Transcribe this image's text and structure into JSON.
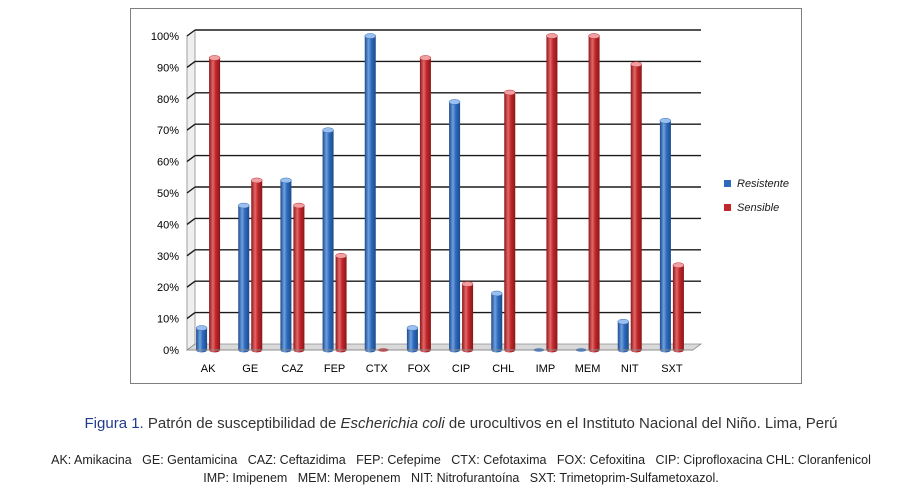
{
  "chart_data": {
    "type": "bar",
    "categories": [
      "AK",
      "GE",
      "CAZ",
      "FEP",
      "CTX",
      "FOX",
      "CIP",
      "CHL",
      "IMP",
      "MEM",
      "NIT",
      "SXT"
    ],
    "series": [
      {
        "name": "Resistente",
        "color": "#2e6bbd",
        "values": [
          7,
          46,
          54,
          70,
          100,
          7,
          79,
          18,
          0,
          0,
          9,
          73
        ]
      },
      {
        "name": "Sensible",
        "color": "#c0282b",
        "values": [
          93,
          54,
          46,
          30,
          0,
          93,
          21,
          82,
          100,
          100,
          91,
          27
        ]
      }
    ],
    "ylim": [
      0,
      100
    ],
    "yticks": [
      "0%",
      "10%",
      "20%",
      "30%",
      "40%",
      "50%",
      "60%",
      "70%",
      "80%",
      "90%",
      "100%"
    ],
    "grid": true,
    "legend_position": "right",
    "style": "3d-cylinder"
  },
  "caption": {
    "label": "Figura 1.",
    "text_before": "Patrón de susceptibilidad de",
    "organism": "Escherichia coli",
    "text_after": "de urocultivos en el Instituto Nacional del Niño. Lima, Perú"
  },
  "abbreviations": {
    "line1": "AK: Amikacina   GE: Gentamicina   CAZ: Ceftazidima   FEP: Cefepime   CTX: Cefotaxima   FOX: Cefoxitina   CIP: Ciprofloxacina CHL: Cloranfenicol",
    "line2": "IMP: Imipenem   MEM: Meropenem   NIT: Nitrofurantoína   SXT: Trimetoprim-Sulfametoxazol."
  }
}
